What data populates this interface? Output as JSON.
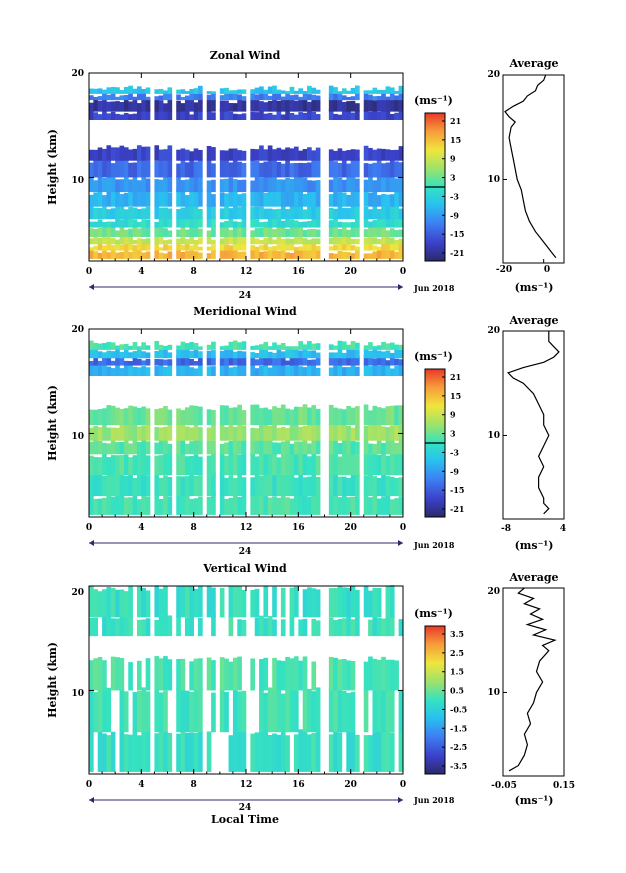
{
  "figure": {
    "date_label": "Jun 2018",
    "day_label": "24",
    "xlabel": "Local Time",
    "ylabel": "Height (km)",
    "unit_label": "(ms⁻¹)"
  },
  "chart_data": [
    {
      "type": "heatmap",
      "title": "Zonal Wind",
      "xlabel": "",
      "ylabel": "Height (km)",
      "x_ticks": [
        "0",
        "4",
        "8",
        "12",
        "16",
        "20",
        "0"
      ],
      "y_ticks": [
        "20",
        "10"
      ],
      "xlim": [
        0,
        24
      ],
      "ylim": [
        2,
        20
      ],
      "colorbar": {
        "unit": "(ms⁻¹)",
        "ticks": [
          "21",
          "15",
          "9",
          "3",
          "-3",
          "-9",
          "-15",
          "-21"
        ],
        "range": [
          -24,
          24
        ]
      },
      "bands": [
        {
          "z0": 2.2,
          "z1": 3.0,
          "value": 16
        },
        {
          "z0": 3.0,
          "z1": 3.6,
          "value": 13
        },
        {
          "z0": 3.6,
          "z1": 4.3,
          "value": 9
        },
        {
          "z0": 4.3,
          "z1": 5.2,
          "value": 3
        },
        {
          "z0": 5.2,
          "z1": 6.0,
          "value": -1
        },
        {
          "z0": 6.0,
          "z1": 7.2,
          "value": -4
        },
        {
          "z0": 7.2,
          "z1": 8.6,
          "value": -7
        },
        {
          "z0": 8.6,
          "z1": 10.0,
          "value": -10
        },
        {
          "z0": 10.0,
          "z1": 11.6,
          "value": -14
        },
        {
          "z0": 11.6,
          "z1": 12.8,
          "value": -18
        },
        {
          "z0": 15.5,
          "z1": 16.3,
          "value": -18
        },
        {
          "z0": 16.3,
          "z1": 17.4,
          "value": -21
        },
        {
          "z0": 17.4,
          "z1": 18.0,
          "value": -12
        },
        {
          "z0": 18.0,
          "z1": 18.5,
          "value": -5
        }
      ],
      "profile": {
        "title": "Average",
        "xlim": [
          -20,
          10
        ],
        "x_ticks": [
          "-20",
          "0"
        ],
        "x_tick_values": [
          -20,
          0
        ],
        "y_ticks": [
          "20",
          "10"
        ],
        "unit": "(ms⁻¹)",
        "height": [
          2.5,
          3,
          3.5,
          4,
          4.5,
          5,
          6,
          7,
          8,
          9,
          10,
          11,
          12,
          13,
          14,
          15,
          15.5,
          16,
          16.5,
          17,
          17.5,
          18,
          18.5,
          19,
          19.5,
          20
        ],
        "value": [
          6,
          4,
          2,
          0,
          -2,
          -4,
          -7,
          -9,
          -10,
          -11,
          -13,
          -14,
          -15,
          -16,
          -17,
          -16,
          -14,
          -17,
          -19,
          -15,
          -10,
          -8,
          -4,
          -3,
          0,
          1
        ]
      }
    },
    {
      "type": "heatmap",
      "title": "Meridional Wind",
      "xlabel": "",
      "ylabel": "Height (km)",
      "x_ticks": [
        "0",
        "4",
        "8",
        "12",
        "16",
        "20",
        "0"
      ],
      "y_ticks": [
        "20",
        "10"
      ],
      "xlim": [
        0,
        24
      ],
      "ylim": [
        2,
        20
      ],
      "colorbar": {
        "unit": "(ms⁻¹)",
        "ticks": [
          "21",
          "15",
          "9",
          "3",
          "-3",
          "-9",
          "-15",
          "-21"
        ],
        "range": [
          -24,
          24
        ]
      },
      "bands": [
        {
          "z0": 2.2,
          "z1": 4.0,
          "value": 1
        },
        {
          "z0": 4.0,
          "z1": 6.0,
          "value": 0
        },
        {
          "z0": 6.0,
          "z1": 8.0,
          "value": 1
        },
        {
          "z0": 8.0,
          "z1": 9.3,
          "value": 2
        },
        {
          "z0": 9.3,
          "z1": 10.8,
          "value": 6
        },
        {
          "z0": 10.8,
          "z1": 12.5,
          "value": 3
        },
        {
          "z0": 15.5,
          "z1": 16.5,
          "value": -7
        },
        {
          "z0": 16.5,
          "z1": 17.2,
          "value": -14
        },
        {
          "z0": 17.2,
          "z1": 18.0,
          "value": -6
        },
        {
          "z0": 18.0,
          "z1": 18.6,
          "value": 1
        }
      ],
      "profile": {
        "title": "Average",
        "xlim": [
          -8,
          4
        ],
        "x_ticks": [
          "-8",
          "4"
        ],
        "x_tick_values": [
          -8,
          4
        ],
        "y_ticks": [
          "20",
          "10"
        ],
        "unit": "(ms⁻¹)",
        "height": [
          2.5,
          3,
          3.5,
          4,
          5,
          6,
          7,
          8,
          9,
          10,
          11,
          12,
          13,
          14,
          15,
          15.5,
          16,
          16.5,
          17,
          17.5,
          18,
          18.5,
          19,
          20
        ],
        "value": [
          0,
          1,
          0,
          0,
          -1,
          -1,
          0,
          -1,
          0,
          1,
          0,
          0,
          -1,
          -2,
          -4,
          -6,
          -7,
          -4,
          0,
          2,
          3,
          2,
          1,
          1
        ]
      }
    },
    {
      "type": "heatmap",
      "title": "Vertical Wind",
      "xlabel": "Local Time",
      "ylabel": "Height (km)",
      "x_ticks": [
        "0",
        "4",
        "8",
        "12",
        "16",
        "20",
        "0"
      ],
      "y_ticks": [
        "20",
        "10"
      ],
      "xlim": [
        0,
        24
      ],
      "ylim": [
        2,
        20
      ],
      "colorbar": {
        "unit": "(ms⁻¹)",
        "ticks": [
          "3.5",
          "2.5",
          "1.5",
          "0.5",
          "-0.5",
          "-1.5",
          "-2.5",
          "-3.5"
        ],
        "range": [
          -4,
          4
        ]
      },
      "bands": [
        {
          "z0": 2.2,
          "z1": 6.0,
          "value": -0.1
        },
        {
          "z0": 6.0,
          "z1": 10.0,
          "value": 0.1
        },
        {
          "z0": 10.0,
          "z1": 13.0,
          "value": 0.2
        },
        {
          "z0": 15.2,
          "z1": 17.0,
          "value": 0.0
        },
        {
          "z0": 17.0,
          "z1": 19.8,
          "value": -0.1
        }
      ],
      "profile": {
        "title": "Average",
        "xlim": [
          -0.05,
          0.15
        ],
        "x_ticks": [
          "-0.05",
          "0.15"
        ],
        "x_tick_values": [
          -0.05,
          0.15
        ],
        "y_ticks": [
          "20",
          "10"
        ],
        "unit": "(ms⁻¹)",
        "height": [
          2.5,
          3,
          4,
          5,
          6,
          7,
          8,
          9,
          10,
          11,
          12,
          13,
          14,
          14.5,
          15,
          15.5,
          16,
          16.5,
          17,
          17.5,
          18,
          18.5,
          19,
          19.5,
          20
        ],
        "value": [
          -0.03,
          0.0,
          0.02,
          0.03,
          0.02,
          0.04,
          0.03,
          0.05,
          0.06,
          0.08,
          0.06,
          0.07,
          0.1,
          0.08,
          0.12,
          0.05,
          0.09,
          0.03,
          0.08,
          0.04,
          0.07,
          0.02,
          0.05,
          0.0,
          0.02
        ]
      }
    }
  ]
}
